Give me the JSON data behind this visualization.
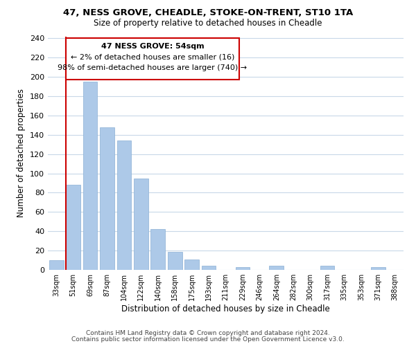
{
  "title_line1": "47, NESS GROVE, CHEADLE, STOKE-ON-TRENT, ST10 1TA",
  "title_line2": "Size of property relative to detached houses in Cheadle",
  "xlabel": "Distribution of detached houses by size in Cheadle",
  "ylabel": "Number of detached properties",
  "bar_labels": [
    "33sqm",
    "51sqm",
    "69sqm",
    "87sqm",
    "104sqm",
    "122sqm",
    "140sqm",
    "158sqm",
    "175sqm",
    "193sqm",
    "211sqm",
    "229sqm",
    "246sqm",
    "264sqm",
    "282sqm",
    "300sqm",
    "317sqm",
    "335sqm",
    "353sqm",
    "371sqm",
    "388sqm"
  ],
  "bar_values": [
    10,
    88,
    195,
    148,
    134,
    95,
    42,
    19,
    11,
    4,
    0,
    3,
    0,
    4,
    0,
    0,
    4,
    0,
    0,
    3,
    0
  ],
  "bar_color": "#adc9e8",
  "vline_x": 1,
  "vline_color": "#cc0000",
  "annotation_line1": "47 NESS GROVE: 54sqm",
  "annotation_line2": "← 2% of detached houses are smaller (16)",
  "annotation_line3": "98% of semi-detached houses are larger (740) →",
  "box_edge_color": "#cc0000",
  "ylim": [
    0,
    242
  ],
  "yticks": [
    0,
    20,
    40,
    60,
    80,
    100,
    120,
    140,
    160,
    180,
    200,
    220,
    240
  ],
  "footer_line1": "Contains HM Land Registry data © Crown copyright and database right 2024.",
  "footer_line2": "Contains public sector information licensed under the Open Government Licence v3.0."
}
